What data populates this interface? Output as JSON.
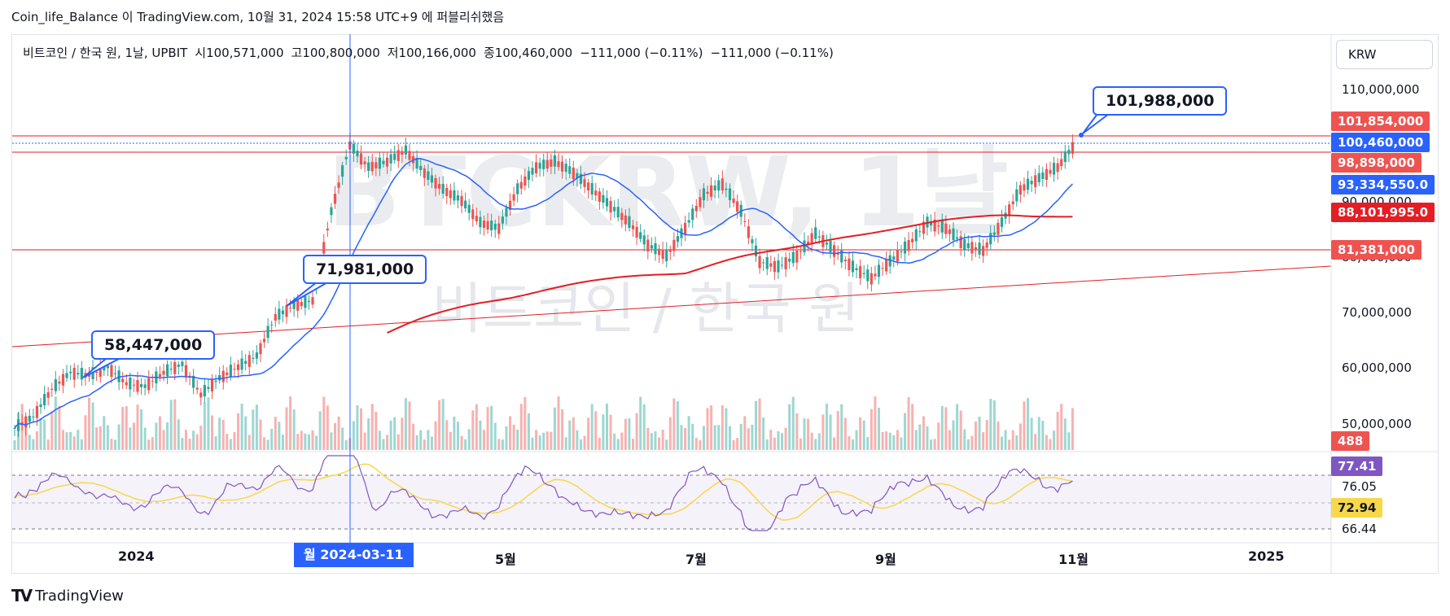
{
  "caption": "Coin_life_Balance 이 TradingView.com, 10월 31, 2024 15:58 UTC+9 에 퍼블리쉬했음",
  "symbol": {
    "name": "비트코인 / 한국 원, 1날, UPBIT",
    "open": "시100,571,000",
    "high": "고100,800,000",
    "low": "저100,166,000",
    "close": "종100,460,000",
    "change1": "−111,000 (−0.11%)",
    "change2": "−111,000 (−0.11%)"
  },
  "currency": "KRW",
  "watermark": {
    "ticker": "BTCKRW, 1날",
    "name": "비트코인 / 한국 원"
  },
  "price_scale": [
    "110,000,000",
    "90,000,000",
    "80,000,000",
    "70,000,000",
    "60,000,000",
    "50,000,000"
  ],
  "tags": {
    "resistance_high": "101,854,000",
    "last_price": "100,460,000",
    "resistance_low": "98,898,000",
    "ma_fast": "93,334,550.0",
    "ma_slow": "88,101,995.0",
    "support": "81,381,000",
    "volume": "488"
  },
  "rsi_scale": {
    "rsi": "77.41",
    "upper": "76.05",
    "signal": "72.94",
    "lower": "66.44"
  },
  "callouts": {
    "peak": "101,988,000",
    "march": "71,981,000",
    "jan": "58,447,000"
  },
  "x_axis": [
    "2024",
    "5월",
    "7월",
    "9월",
    "11월",
    "2025"
  ],
  "cursor_date": "월 2024-03-11",
  "brand": {
    "logo": "TV",
    "name": "TradingView"
  },
  "colors": {
    "up": "#26a69a",
    "down": "#ef5350",
    "ma_fast": "#2962ff",
    "ma_slow": "#e31e24",
    "rsi": "#7e57c2",
    "rsi_signal": "#f7d84a",
    "accent": "#2962ff"
  },
  "chart_data": {
    "type": "candlestick",
    "weekly_close": [
      49000000,
      51000000,
      56000000,
      59000000,
      58447000,
      60000000,
      57000000,
      56500000,
      59000000,
      60500000,
      55000000,
      58000000,
      60000000,
      62000000,
      69000000,
      71000000,
      71981000,
      88000000,
      100000000,
      96000000,
      97000000,
      99000000,
      95000000,
      92000000,
      90000000,
      86000000,
      85000000,
      92000000,
      96000000,
      97000000,
      95000000,
      92000000,
      89000000,
      86000000,
      82000000,
      80000000,
      85000000,
      91000000,
      93000000,
      88000000,
      79000000,
      78000000,
      80000000,
      84000000,
      81000000,
      78000000,
      76000000,
      79000000,
      82000000,
      86000000,
      85000000,
      82000000,
      81000000,
      86000000,
      92000000,
      94000000,
      96000000,
      100460000
    ]
  }
}
